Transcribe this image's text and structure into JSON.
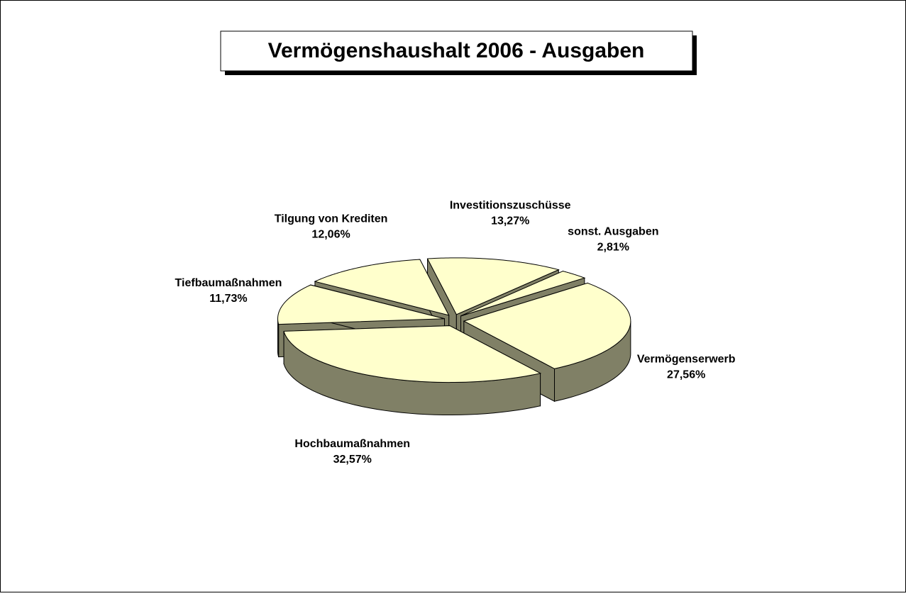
{
  "chart_data": {
    "type": "pie3d",
    "title": "Vermögenshaushalt 2006 - Ausgaben",
    "categories": [
      "Investitionszuschüsse",
      "sonst. Ausgaben",
      "Vermögenserwerb",
      "Hochbaumaßnahmen",
      "Tiefbaumaßnahmen",
      "Tilgung von Krediten"
    ],
    "values": [
      13.27,
      2.81,
      27.56,
      32.57,
      11.73,
      12.06
    ],
    "value_labels": [
      "13,27%",
      "2,81%",
      "27,56%",
      "32,57%",
      "11,73%",
      "12,06%"
    ],
    "color": "#ffffcc",
    "side_color": "#808066"
  }
}
